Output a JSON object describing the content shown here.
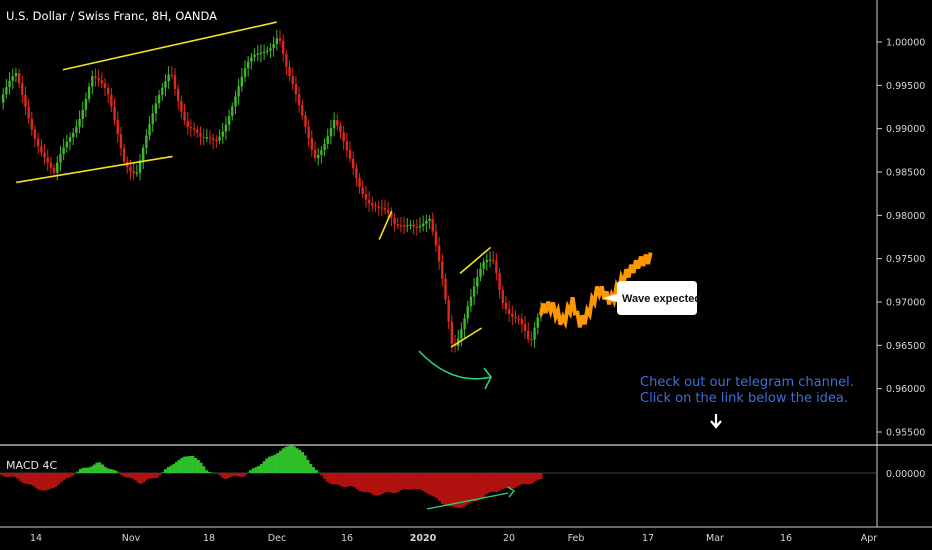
{
  "chart_data": {
    "type": "candlestick",
    "title": "U.S. Dollar / Swiss Franc, 8H, OANDA",
    "price_axis": {
      "ylim": [
        0.9513,
        1.0033
      ],
      "ticks": [
        "1.00000",
        "0.99500",
        "0.99000",
        "0.98500",
        "0.98000",
        "0.97500",
        "0.97000",
        "0.96500",
        "0.96000",
        "0.95500"
      ],
      "tick_values": [
        1.0,
        0.995,
        0.99,
        0.985,
        0.98,
        0.975,
        0.97,
        0.965,
        0.96,
        0.955
      ]
    },
    "time_axis": {
      "labels": [
        "14",
        "Nov",
        "18",
        "Dec",
        "16",
        "2020",
        "20",
        "Feb",
        "17",
        "Mar",
        "16",
        "Apr"
      ],
      "bold": [
        "2020"
      ]
    },
    "price_path": [
      [
        2019.784,
        0.993
      ],
      [
        2019.793,
        0.9955
      ],
      [
        2019.8,
        0.9918
      ],
      [
        2019.808,
        0.9875
      ],
      [
        2019.814,
        0.984
      ],
      [
        2019.825,
        0.99
      ],
      [
        2019.835,
        0.9965
      ],
      [
        2019.844,
        0.993
      ],
      [
        2019.853,
        0.987
      ],
      [
        2019.86,
        0.9855
      ],
      [
        2019.868,
        0.99
      ],
      [
        2019.879,
        0.9975
      ],
      [
        2019.888,
        0.9905
      ],
      [
        2019.896,
        0.9878
      ],
      [
        2019.904,
        0.989
      ],
      [
        2019.913,
        0.993
      ],
      [
        2019.923,
        0.997
      ],
      [
        2019.931,
        0.9995
      ],
      [
        2019.939,
        1.0015
      ],
      [
        2019.944,
        0.996
      ],
      [
        2019.95,
        0.992
      ],
      [
        2019.959,
        0.9875
      ],
      [
        2019.97,
        0.9905
      ],
      [
        2019.976,
        0.987
      ],
      [
        2019.984,
        0.984
      ],
      [
        2019.994,
        0.981
      ],
      [
        2020.004,
        0.978
      ],
      [
        2020.012,
        0.98
      ],
      [
        2020.017,
        0.9795
      ],
      [
        2020.023,
        0.979
      ],
      [
        2020.03,
        0.972
      ],
      [
        2020.036,
        0.965
      ],
      [
        2020.044,
        0.97
      ],
      [
        2020.053,
        0.9735
      ],
      [
        2020.059,
        0.9745
      ],
      [
        2020.063,
        0.971
      ],
      [
        2020.073,
        0.968
      ],
      [
        2020.079,
        0.964
      ],
      [
        2020.085,
        0.969
      ]
    ],
    "projection_path": [
      [
        2020.085,
        0.969
      ],
      [
        2020.091,
        0.9695
      ],
      [
        2020.097,
        0.9675
      ],
      [
        2020.103,
        0.97
      ],
      [
        2020.106,
        0.9675
      ],
      [
        2020.11,
        0.968
      ],
      [
        2020.117,
        0.9715
      ],
      [
        2020.124,
        0.97
      ],
      [
        2020.132,
        0.973
      ],
      [
        2020.14,
        0.9745
      ],
      [
        2020.146,
        0.975
      ]
    ],
    "drawings": {
      "channel_upper": [
        [
          2019.819,
          0.9968
        ],
        [
          2019.938,
          1.0023
        ]
      ],
      "channel_lower": [
        [
          2019.793,
          0.9838
        ],
        [
          2019.88,
          0.9868
        ]
      ],
      "flag_a": [
        [
          2020.04,
          0.9733
        ],
        [
          2020.057,
          0.9763
        ]
      ],
      "flag_b": [
        [
          2020.035,
          0.9648
        ],
        [
          2020.052,
          0.967
        ]
      ],
      "small_leg": [
        [
          2019.995,
          0.9772
        ],
        [
          2020.002,
          0.9805
        ]
      ]
    },
    "macd": {
      "label": "MACD 4C",
      "zero_tick": "0.00000",
      "histogram": [
        [
          2019.78,
          0.0
        ],
        [
          2019.793,
          -0.15
        ],
        [
          2019.8,
          -0.35
        ],
        [
          2019.81,
          -0.55
        ],
        [
          2019.822,
          -0.15
        ],
        [
          2019.829,
          0.1
        ],
        [
          2019.839,
          0.3
        ],
        [
          2019.85,
          0.0
        ],
        [
          2019.862,
          -0.3
        ],
        [
          2019.872,
          -0.1
        ],
        [
          2019.882,
          0.35
        ],
        [
          2019.891,
          0.55
        ],
        [
          2019.899,
          0.1
        ],
        [
          2019.909,
          -0.15
        ],
        [
          2019.92,
          -0.08
        ],
        [
          2019.927,
          0.2
        ],
        [
          2019.938,
          0.6
        ],
        [
          2019.947,
          0.85
        ],
        [
          2019.954,
          0.5
        ],
        [
          2019.961,
          0.0
        ],
        [
          2019.969,
          -0.35
        ],
        [
          2019.979,
          -0.4
        ],
        [
          2019.992,
          -0.65
        ],
        [
          2020.005,
          -0.55
        ],
        [
          2020.014,
          -0.45
        ],
        [
          2020.023,
          -0.6
        ],
        [
          2020.03,
          -0.9
        ],
        [
          2020.038,
          -1.05
        ],
        [
          2020.048,
          -0.85
        ],
        [
          2020.058,
          -0.55
        ],
        [
          2020.068,
          -0.45
        ],
        [
          2020.079,
          -0.3
        ],
        [
          2020.085,
          -0.2
        ]
      ]
    },
    "annotations": {
      "bubble": "Wave expected",
      "note_line1": "Check out our telegram channel.",
      "note_line2": "Click on the link below the idea."
    }
  }
}
